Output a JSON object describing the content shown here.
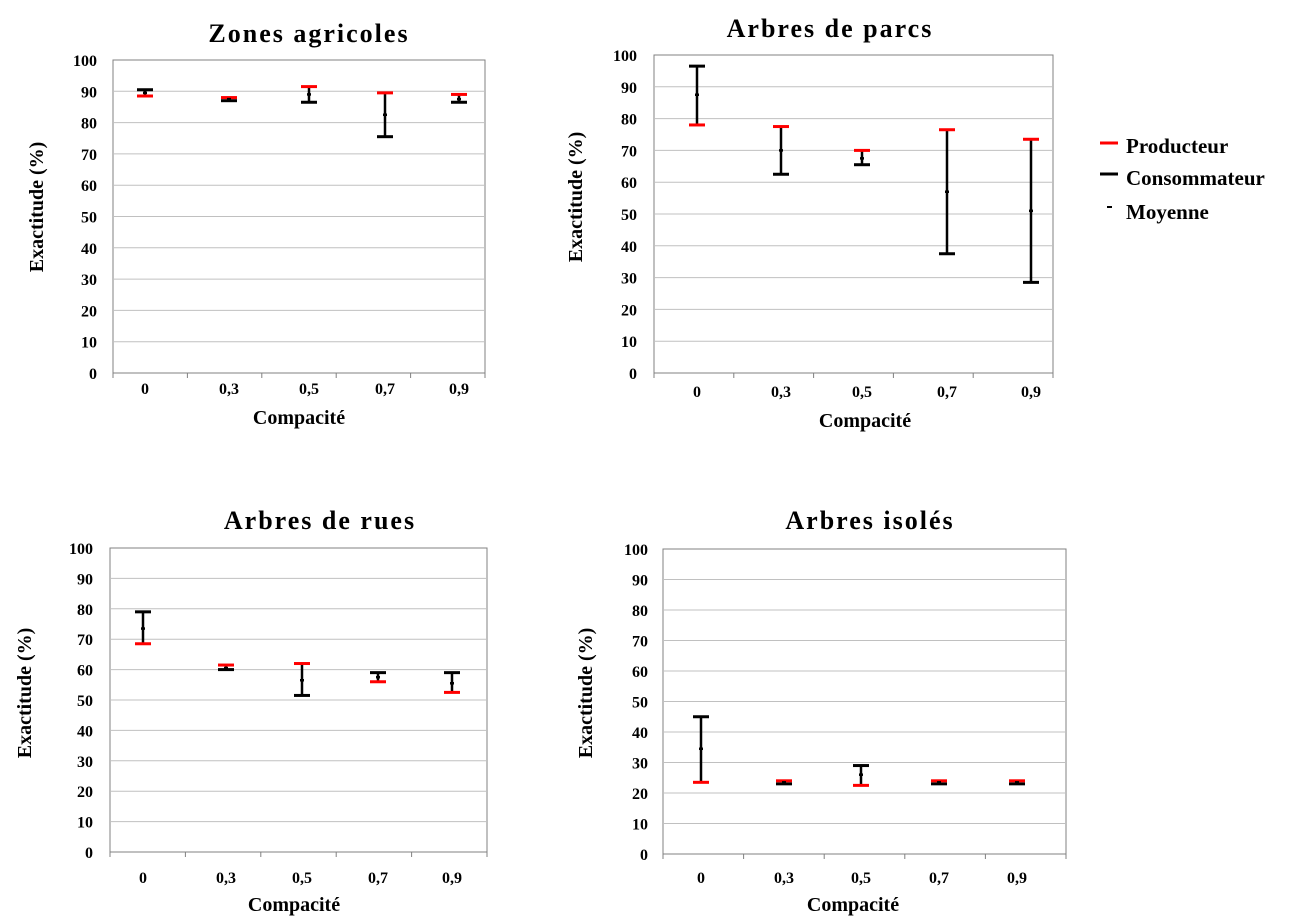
{
  "colors": {
    "producteur": "#ff0000",
    "consommateur": "#000000",
    "moyenne": "#000000",
    "grid": "#c0c0c0",
    "frame": "#808080"
  },
  "legend": {
    "placement": "right",
    "items": [
      {
        "label": "Producteur",
        "color": "#ff0000",
        "marker": "line-long"
      },
      {
        "label": "Consommateur",
        "color": "#000000",
        "marker": "line-long"
      },
      {
        "label": "Moyenne",
        "color": "#000000",
        "marker": "line-short"
      }
    ]
  },
  "chart_data": [
    {
      "type": "error-bar",
      "title": "Zones agricoles",
      "xlabel": "Compacité",
      "ylabel": "Exactitude (%)",
      "ylim": [
        0,
        100
      ],
      "ytick_step": 10,
      "grid": true,
      "categories": [
        "0",
        "0,3",
        "0,5",
        "0,7",
        "0,9"
      ],
      "series": [
        {
          "name": "Producteur",
          "values": [
            88.5,
            88,
            91.5,
            89.5,
            89
          ]
        },
        {
          "name": "Consommateur",
          "values": [
            90.5,
            87,
            86.5,
            75.5,
            86.5
          ]
        },
        {
          "name": "Moyenne",
          "values": [
            89.5,
            87.5,
            89,
            82.5,
            87.5
          ]
        }
      ]
    },
    {
      "type": "error-bar",
      "title": "Arbres de parcs",
      "xlabel": "Compacité",
      "ylabel": "Exactitude (%)",
      "ylim": [
        0,
        100
      ],
      "ytick_step": 10,
      "grid": true,
      "categories": [
        "0",
        "0,3",
        "0,5",
        "0,7",
        "0,9"
      ],
      "series": [
        {
          "name": "Producteur",
          "values": [
            78,
            77.5,
            70,
            76.5,
            73.5
          ]
        },
        {
          "name": "Consommateur",
          "values": [
            96.5,
            62.5,
            65.5,
            37.5,
            28.5
          ]
        },
        {
          "name": "Moyenne",
          "values": [
            87.5,
            70,
            67.5,
            57,
            51
          ]
        }
      ]
    },
    {
      "type": "error-bar",
      "title": "Arbres de rues",
      "xlabel": "Compacité",
      "ylabel": "Exactitude (%)",
      "ylim": [
        0,
        100
      ],
      "ytick_step": 10,
      "grid": true,
      "categories": [
        "0",
        "0,3",
        "0,5",
        "0,7",
        "0,9"
      ],
      "series": [
        {
          "name": "Producteur",
          "values": [
            68.5,
            61.5,
            62,
            56,
            52.5
          ]
        },
        {
          "name": "Consommateur",
          "values": [
            79,
            60,
            51.5,
            59,
            59
          ]
        },
        {
          "name": "Moyenne",
          "values": [
            73.5,
            60.5,
            56.5,
            57.5,
            55.5
          ]
        }
      ]
    },
    {
      "type": "error-bar",
      "title": "Arbres isolés",
      "xlabel": "Compacité",
      "ylabel": "Exactitude (%)",
      "ylim": [
        0,
        100
      ],
      "ytick_step": 10,
      "grid": true,
      "categories": [
        "0",
        "0,3",
        "0,5",
        "0,7",
        "0,9"
      ],
      "series": [
        {
          "name": "Producteur",
          "values": [
            23.5,
            24,
            22.5,
            24,
            24
          ]
        },
        {
          "name": "Consommateur",
          "values": [
            45,
            23,
            29,
            23,
            23
          ]
        },
        {
          "name": "Moyenne",
          "values": [
            34.5,
            23.5,
            26,
            23.5,
            23.5
          ]
        }
      ]
    }
  ]
}
